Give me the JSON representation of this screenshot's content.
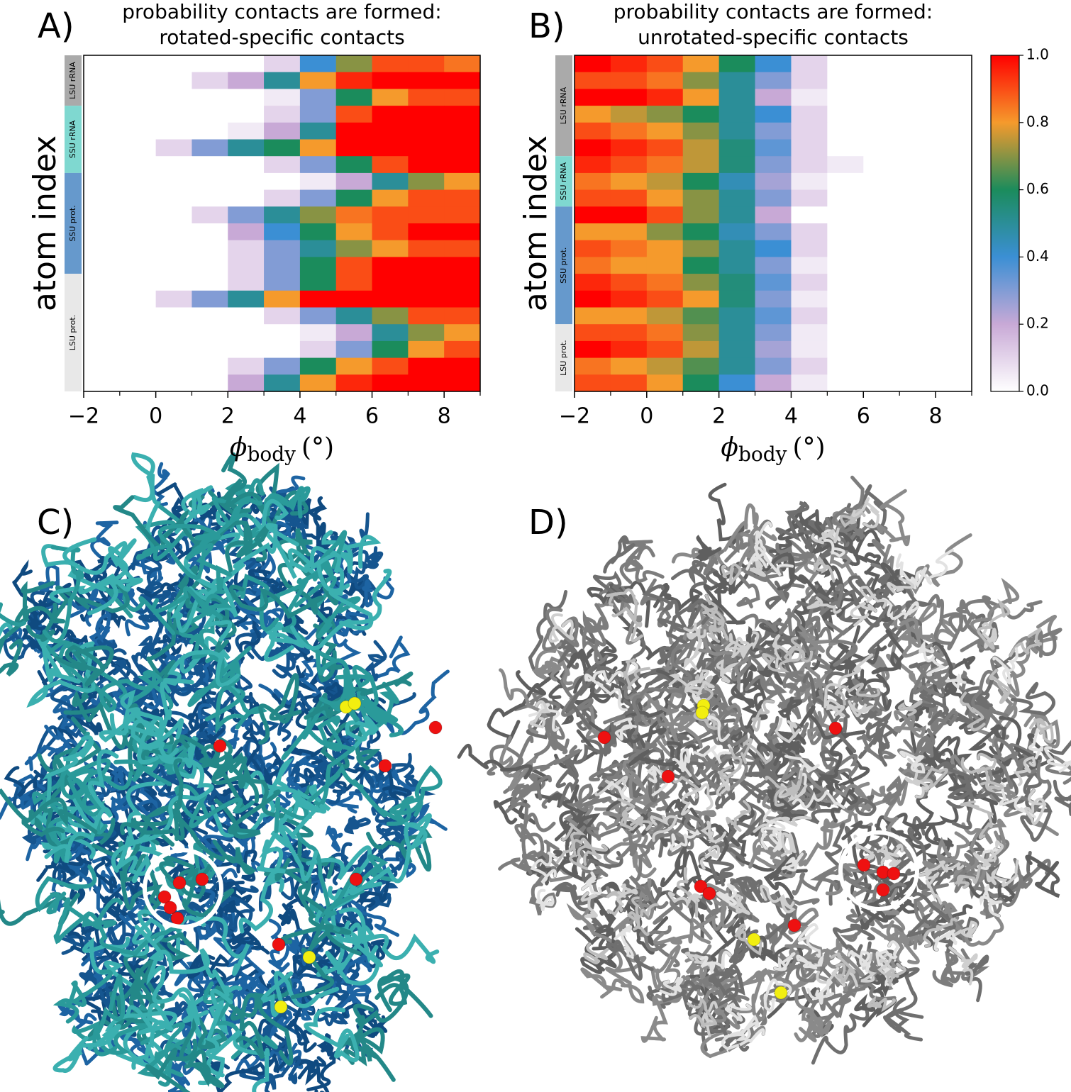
{
  "chart_data": [
    {
      "type": "heatmap",
      "panel": "A)",
      "title_lines": [
        "probability contacts are formed:",
        "rotated-specific contacts"
      ],
      "ylabel": "atom index",
      "xlabel_symbol": "ϕ",
      "xlabel_subscript": "body",
      "xlabel_unit": "(°)",
      "xlim": [
        -2,
        9
      ],
      "xticks": [
        {
          "value": -2,
          "label": "−2"
        },
        0,
        2,
        4,
        6,
        8
      ],
      "xminorticks": [
        -1,
        1,
        3,
        5,
        7,
        9
      ],
      "x_edges": [
        -2,
        -1,
        0,
        1,
        2,
        3,
        4,
        5,
        6,
        7,
        8,
        9
      ],
      "colormap": [
        "#ffffff",
        "#c8a9d6",
        "#3b8fd4",
        "#1b8c5c",
        "#f59a2c",
        "#ff0000"
      ],
      "groups": [
        {
          "label": "LSU rRNA",
          "color": "#aaaaaa",
          "values": [
            [
              0,
              0,
              0,
              0,
              0,
              0.1,
              0.4,
              0.7,
              0.9,
              0.9,
              0.85
            ],
            [
              0,
              0,
              0,
              0.1,
              0.2,
              0.5,
              0.8,
              0.95,
              1,
              1,
              1
            ],
            [
              0,
              0,
              0,
              0,
              0,
              0.05,
              0.3,
              0.6,
              0.8,
              0.9,
              0.9
            ]
          ]
        },
        {
          "label": "SSU rRNA",
          "color": "#7fd8d0",
          "values": [
            [
              0,
              0,
              0,
              0,
              0,
              0.1,
              0.3,
              0.9,
              1,
              1,
              1
            ],
            [
              0,
              0,
              0,
              0,
              0.05,
              0.2,
              0.5,
              1,
              1,
              1,
              1
            ],
            [
              0,
              0,
              0.1,
              0.3,
              0.5,
              0.6,
              0.8,
              1,
              1,
              1,
              1
            ],
            [
              0,
              0,
              0,
              0,
              0,
              0.1,
              0.3,
              0.6,
              0.9,
              1,
              1
            ]
          ]
        },
        {
          "label": "SSU prot.",
          "color": "#6699cc",
          "values": [
            [
              0,
              0,
              0,
              0,
              0,
              0,
              0.05,
              0.2,
              0.5,
              0.7,
              0.8
            ],
            [
              0,
              0,
              0,
              0,
              0,
              0.1,
              0.3,
              0.6,
              0.8,
              0.9,
              0.9
            ],
            [
              0,
              0,
              0,
              0.1,
              0.3,
              0.5,
              0.7,
              0.85,
              0.9,
              0.9,
              0.9
            ],
            [
              0,
              0,
              0,
              0,
              0.2,
              0.4,
              0.6,
              0.8,
              0.9,
              1,
              1
            ],
            [
              0,
              0,
              0,
              0,
              0.1,
              0.3,
              0.5,
              0.7,
              0.8,
              0.9,
              0.9
            ],
            [
              0,
              0,
              0,
              0,
              0.1,
              0.3,
              0.6,
              0.9,
              1,
              1,
              1
            ]
          ]
        },
        {
          "label": "LSU prot.",
          "color": "#e8e8e8",
          "values": [
            [
              0,
              0,
              0,
              0,
              0.1,
              0.3,
              0.6,
              0.9,
              1,
              1,
              1
            ],
            [
              0,
              0,
              0.1,
              0.3,
              0.5,
              0.8,
              1,
              1,
              1,
              1,
              1
            ],
            [
              0,
              0,
              0,
              0,
              0,
              0.1,
              0.3,
              0.5,
              0.7,
              0.9,
              0.9
            ],
            [
              0,
              0,
              0,
              0,
              0,
              0,
              0.05,
              0.2,
              0.5,
              0.7,
              0.8
            ],
            [
              0,
              0,
              0,
              0,
              0,
              0,
              0.1,
              0.3,
              0.6,
              0.8,
              0.9
            ],
            [
              0,
              0,
              0,
              0,
              0.1,
              0.3,
              0.6,
              0.8,
              0.9,
              1,
              1
            ],
            [
              0,
              0,
              0,
              0,
              0.2,
              0.5,
              0.8,
              0.95,
              1,
              1,
              1
            ]
          ]
        }
      ]
    },
    {
      "type": "heatmap",
      "panel": "B)",
      "title_lines": [
        "probability contacts are formed:",
        "unrotated-specific contacts"
      ],
      "ylabel": "atom index",
      "xlabel_symbol": "ϕ",
      "xlabel_subscript": "body",
      "xlabel_unit": "(°)",
      "xlim": [
        -2,
        9
      ],
      "xticks": [
        {
          "value": -2,
          "label": "−2"
        },
        0,
        2,
        4,
        6,
        8
      ],
      "xminorticks": [
        -1,
        1,
        3,
        5,
        7,
        9
      ],
      "x_edges": [
        -2,
        -1,
        0,
        1,
        2,
        3,
        4,
        5,
        6,
        7,
        8,
        9
      ],
      "colormap": [
        "#ffffff",
        "#c8a9d6",
        "#3b8fd4",
        "#1b8c5c",
        "#f59a2c",
        "#ff0000"
      ],
      "colorbar_lim": [
        0,
        1
      ],
      "colorbar_ticks": [
        {
          "value": 0,
          "label": "0.0"
        },
        0.2,
        0.4,
        0.6,
        0.8,
        {
          "value": 1,
          "label": "1.0"
        }
      ],
      "groups": [
        {
          "label": "LSU rRNA",
          "color": "#aaaaaa",
          "values": [
            [
              1,
              0.95,
              0.9,
              0.8,
              0.6,
              0.4,
              0.1,
              0,
              0,
              0,
              0
            ],
            [
              0.9,
              0.9,
              0.85,
              0.7,
              0.5,
              0.3,
              0.1,
              0,
              0,
              0,
              0
            ],
            [
              1,
              1,
              0.95,
              0.8,
              0.5,
              0.2,
              0.05,
              0,
              0,
              0,
              0
            ],
            [
              0.8,
              0.75,
              0.7,
              0.6,
              0.5,
              0.4,
              0.1,
              0,
              0,
              0,
              0
            ],
            [
              0.9,
              0.85,
              0.8,
              0.7,
              0.5,
              0.3,
              0.1,
              0,
              0,
              0,
              0
            ],
            [
              1,
              0.95,
              0.9,
              0.75,
              0.55,
              0.35,
              0.1,
              0,
              0,
              0,
              0
            ]
          ]
        },
        {
          "label": "SSU rRNA",
          "color": "#7fd8d0",
          "values": [
            [
              0.95,
              0.9,
              0.85,
              0.75,
              0.55,
              0.3,
              0.1,
              0.05,
              0,
              0,
              0
            ],
            [
              0.85,
              0.8,
              0.75,
              0.6,
              0.45,
              0.25,
              0.05,
              0,
              0,
              0,
              0
            ],
            [
              0.9,
              0.9,
              0.8,
              0.7,
              0.5,
              0.3,
              0.1,
              0,
              0,
              0,
              0
            ]
          ]
        },
        {
          "label": "SSU prot.",
          "color": "#6699cc",
          "values": [
            [
              1,
              1,
              0.9,
              0.7,
              0.5,
              0.2,
              0,
              0,
              0,
              0,
              0
            ],
            [
              0.8,
              0.8,
              0.7,
              0.6,
              0.45,
              0.3,
              0.1,
              0,
              0,
              0,
              0
            ],
            [
              0.9,
              0.85,
              0.8,
              0.7,
              0.5,
              0.4,
              0.1,
              0,
              0,
              0,
              0
            ],
            [
              0.85,
              0.8,
              0.8,
              0.6,
              0.5,
              0.3,
              0.05,
              0,
              0,
              0,
              0
            ],
            [
              0.95,
              0.9,
              0.85,
              0.7,
              0.55,
              0.35,
              0.1,
              0,
              0,
              0,
              0
            ],
            [
              1,
              0.95,
              0.9,
              0.8,
              0.55,
              0.3,
              0.05,
              0,
              0,
              0,
              0
            ],
            [
              0.8,
              0.8,
              0.75,
              0.65,
              0.5,
              0.35,
              0.1,
              0,
              0,
              0,
              0
            ]
          ]
        },
        {
          "label": "LSU prot.",
          "color": "#e8e8e8",
          "values": [
            [
              0.9,
              0.9,
              0.85,
              0.7,
              0.5,
              0.3,
              0.05,
              0,
              0,
              0,
              0
            ],
            [
              1,
              0.95,
              0.9,
              0.75,
              0.5,
              0.25,
              0.05,
              0,
              0,
              0,
              0
            ],
            [
              0.85,
              0.8,
              0.75,
              0.65,
              0.5,
              0.3,
              0.1,
              0,
              0,
              0,
              0
            ],
            [
              0.9,
              0.9,
              0.8,
              0.6,
              0.4,
              0.2,
              0.05,
              0,
              0,
              0,
              0
            ]
          ]
        }
      ]
    }
  ],
  "panels": [
    {
      "label": "C)"
    },
    {
      "label": "D)"
    }
  ]
}
